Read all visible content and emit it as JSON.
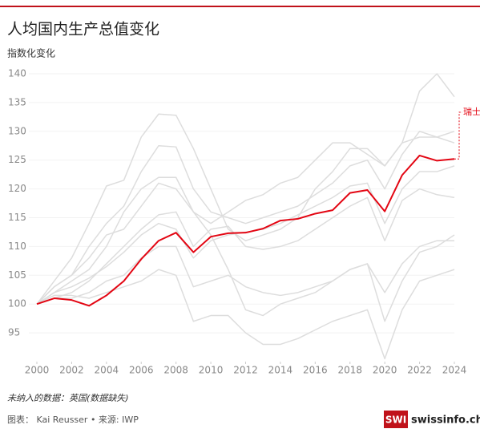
{
  "chart_data": {
    "type": "line",
    "title": "人均国内生产总值变化",
    "subtitle": "指数化变化",
    "footnote": "未纳入的数据：英国(数据缺失)",
    "credit": "图表： Kai Reusser • 来源: IWP",
    "brand": "SWI",
    "brand_site": "swissinfo.ch",
    "x": [
      2000,
      2001,
      2002,
      2003,
      2004,
      2005,
      2006,
      2007,
      2008,
      2009,
      2010,
      2011,
      2012,
      2013,
      2014,
      2015,
      2016,
      2017,
      2018,
      2019,
      2020,
      2021,
      2022,
      2023,
      2024
    ],
    "xlim": [
      2000,
      2024
    ],
    "xticks": [
      2000,
      2002,
      2004,
      2006,
      2008,
      2010,
      2012,
      2014,
      2016,
      2018,
      2020,
      2022,
      2024
    ],
    "ylim": [
      90,
      140
    ],
    "yticks": [
      95,
      100,
      105,
      110,
      115,
      120,
      125,
      130,
      135,
      140
    ],
    "grid": true,
    "series": [
      {
        "color": "#dddddd",
        "values": [
          100,
          104,
          108,
          114,
          120.5,
          121.5,
          129,
          133,
          132.8,
          127,
          120,
          113,
          111,
          112,
          113,
          115,
          120,
          123,
          127,
          127,
          124,
          128,
          137,
          140,
          136
        ]
      },
      {
        "color": "#dddddd",
        "values": [
          100,
          103,
          105,
          110,
          114,
          117,
          123,
          127.5,
          127.3,
          120,
          116,
          115,
          114,
          115,
          116,
          117,
          119,
          121,
          124,
          125,
          120,
          126,
          130,
          129,
          130
        ]
      },
      {
        "color": "#dddddd",
        "values": [
          100,
          101.5,
          101.5,
          101,
          102,
          103,
          104,
          106,
          105,
          97,
          98,
          98,
          95,
          93,
          93,
          94,
          95.5,
          97,
          98,
          99,
          90.5,
          99,
          104,
          105,
          106
        ]
      },
      {
        "color": "#dddddd",
        "values": [
          100,
          103,
          105,
          108,
          112,
          113,
          117,
          121,
          120,
          116,
          112,
          106,
          99,
          98,
          100,
          101,
          102,
          104,
          106,
          107,
          97,
          104,
          109,
          110,
          112
        ]
      },
      {
        "color": "#dddddd",
        "values": [
          100,
          102,
          103,
          104.5,
          106.5,
          109,
          112,
          114,
          113,
          108,
          111,
          112,
          112.5,
          113,
          114,
          115.5,
          117,
          118.5,
          120.5,
          121,
          114,
          120,
          123,
          123,
          124
        ]
      },
      {
        "color": "#dddddd",
        "values": [
          100,
          101,
          102,
          104,
          107,
          110,
          113,
          115.5,
          116,
          110,
          113,
          113.5,
          110,
          109.5,
          110,
          111,
          113,
          115,
          117,
          118.5,
          111,
          118,
          120,
          119,
          118.5
        ]
      },
      {
        "color": "#dddddd",
        "values": [
          100,
          101,
          101,
          102,
          104,
          105,
          108,
          110,
          110,
          103,
          104,
          105,
          103,
          102,
          101.5,
          102,
          103,
          104,
          106,
          107,
          102,
          107,
          110,
          111,
          111
        ]
      },
      {
        "color": "#dddddd",
        "values": [
          100,
          102,
          104,
          106,
          110,
          116,
          120,
          122,
          122,
          116,
          114,
          116,
          118,
          119,
          121,
          122,
          125,
          128,
          128,
          126,
          124,
          128,
          129,
          129,
          128
        ]
      },
      {
        "name": "瑞士",
        "color": "#e30613",
        "values": [
          100,
          101,
          100.7,
          99.7,
          101.5,
          104,
          107.8,
          111,
          112.4,
          109,
          111.7,
          112.3,
          112.4,
          113.1,
          114.5,
          114.8,
          115.7,
          116.3,
          119.3,
          119.8,
          116.1,
          122.4,
          125.8,
          124.9,
          125.2
        ]
      }
    ]
  }
}
